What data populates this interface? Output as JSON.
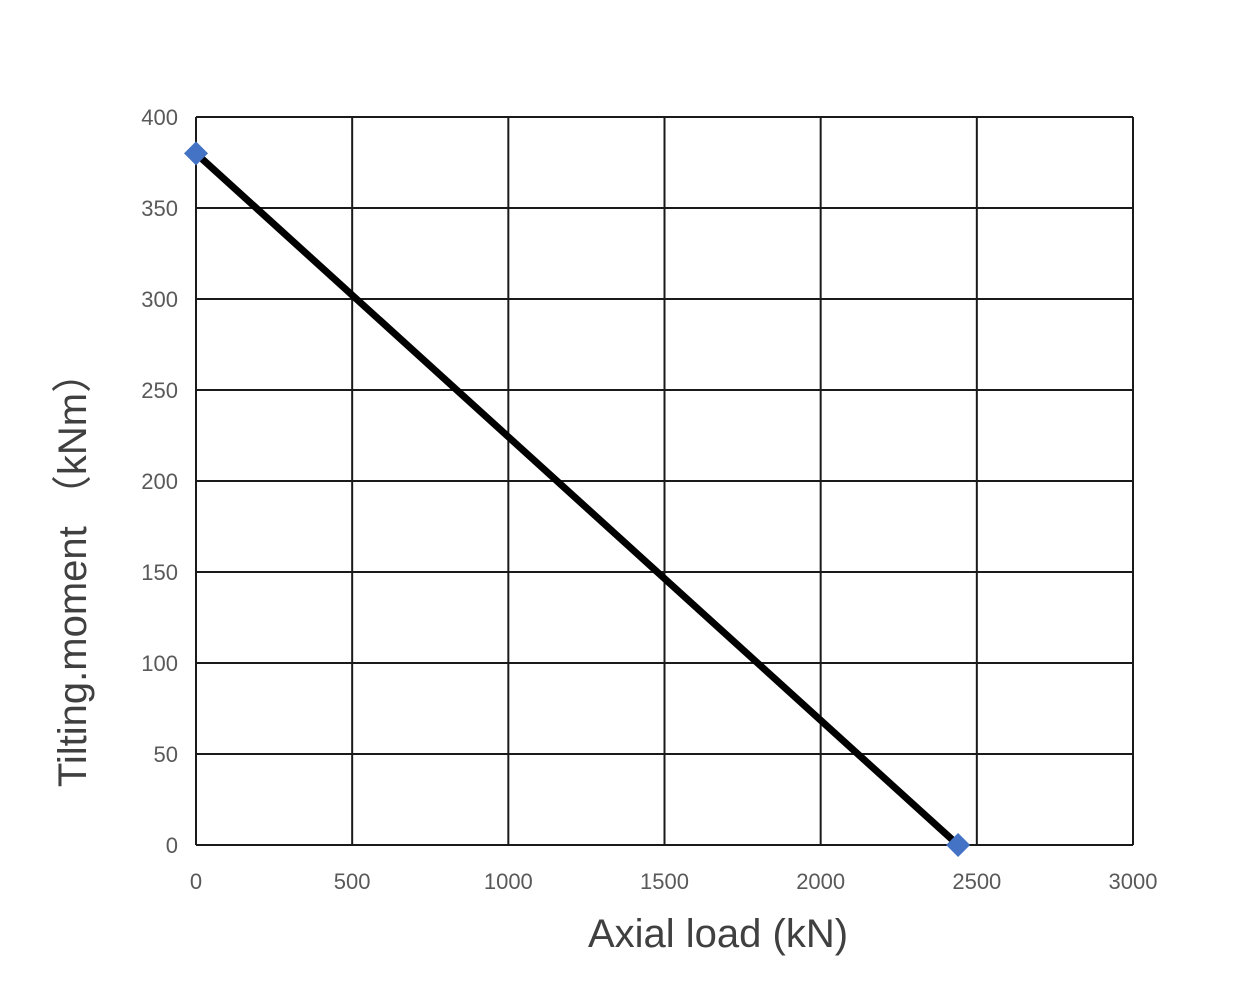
{
  "chart_data": {
    "type": "line",
    "title": "",
    "xlabel": "Axial load (kN)",
    "ylabel": "Tilting.moment （kNm）",
    "xlim": [
      0,
      3000
    ],
    "ylim": [
      0,
      400
    ],
    "x_ticks": [
      0,
      500,
      1000,
      1500,
      2000,
      2500,
      3000
    ],
    "y_ticks": [
      0,
      50,
      100,
      150,
      200,
      250,
      300,
      350,
      400
    ],
    "x_tick_labels": [
      "0",
      "500",
      "1000",
      "1500",
      "2000",
      "2500",
      "3000"
    ],
    "y_tick_labels": [
      "0",
      "50",
      "100",
      "150",
      "200",
      "250",
      "300",
      "350",
      "400"
    ],
    "grid": true,
    "legend": "none",
    "series": [
      {
        "line_color": "#000000",
        "marker": "diamond",
        "marker_color": "#4472C4",
        "points": [
          {
            "x": 0,
            "y": 380
          },
          {
            "x": 2440,
            "y": 0
          }
        ]
      }
    ]
  }
}
